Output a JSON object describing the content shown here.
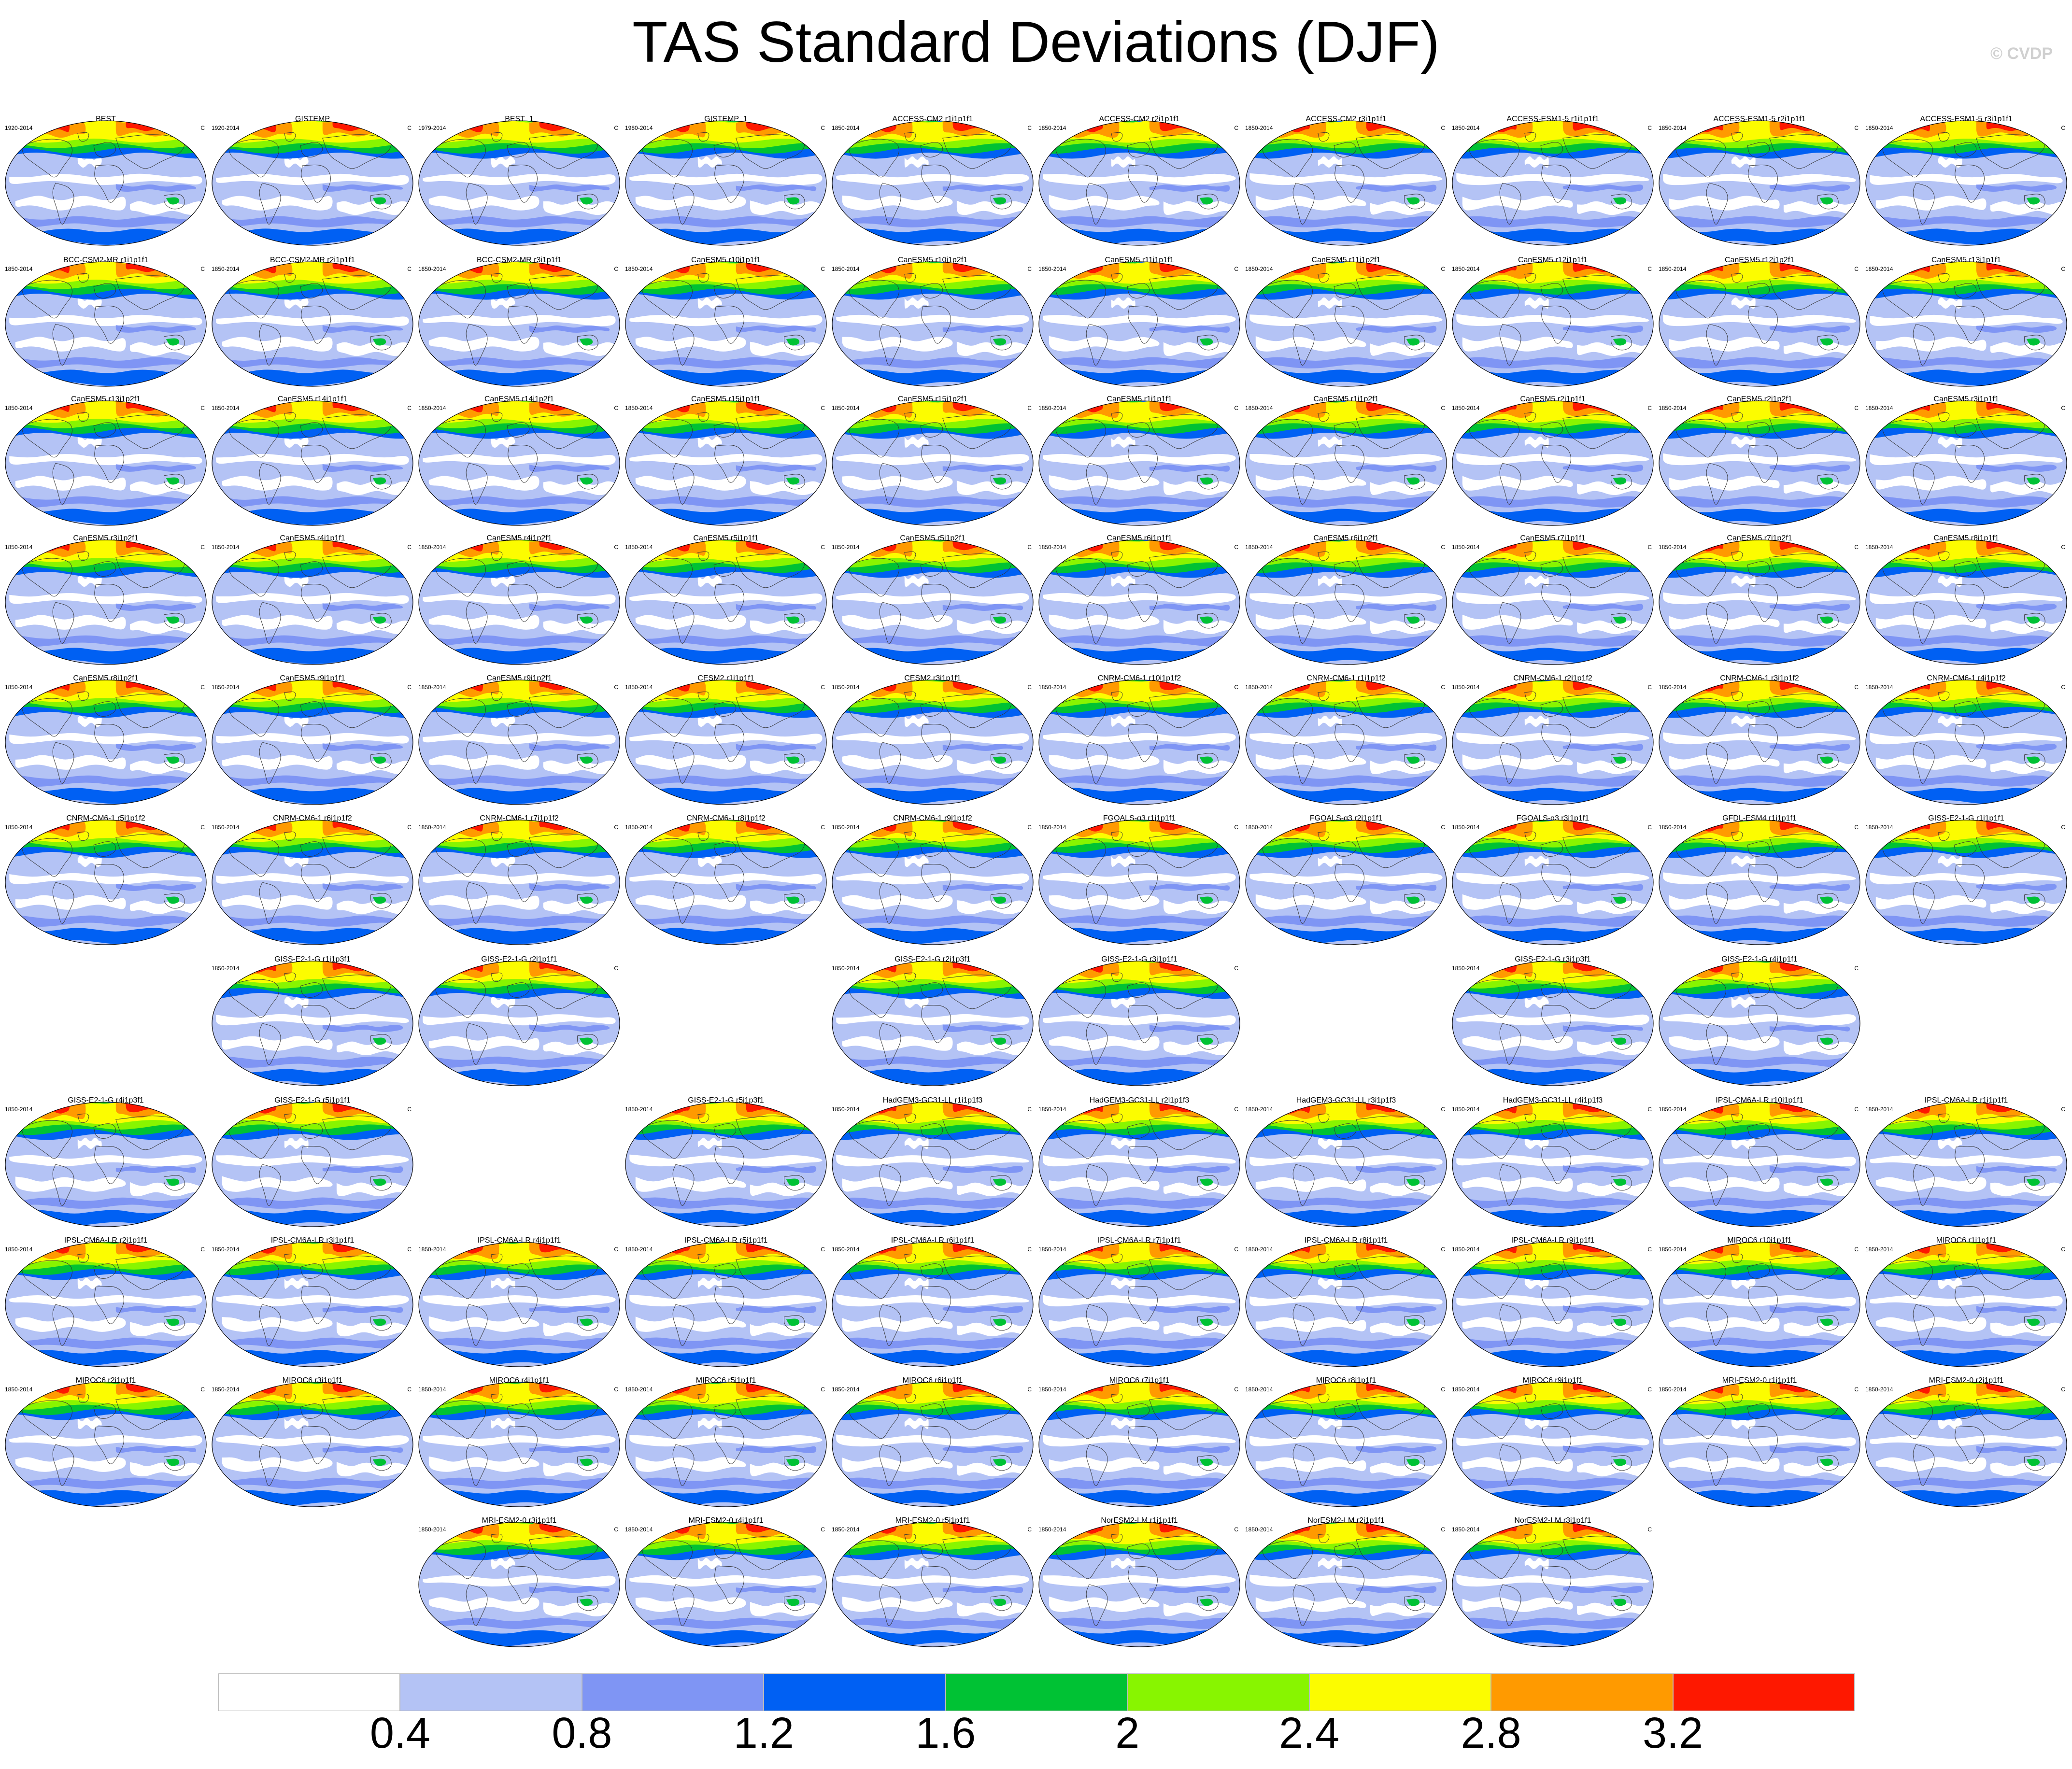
{
  "title": "TAS Standard Deviations (DJF)",
  "credit": "© CVDP",
  "colors": {
    "levels": [
      "#ffffff",
      "#b4c3f5",
      "#7f95f4",
      "#0060f3",
      "#00c234",
      "#88f500",
      "#fcfc00",
      "#ff9a00",
      "#fe1800"
    ],
    "continent_outline": "#333333",
    "map_border": "#000000"
  },
  "chart_data": {
    "type": "heatmap",
    "title": "TAS Standard Deviations (DJF)",
    "colorbar": {
      "tick_labels": [
        "0.4",
        "0.8",
        "1.2",
        "1.6",
        "2",
        "2.4",
        "2.8",
        "3.2"
      ],
      "bounds": [
        0.4,
        0.8,
        1.2,
        1.6,
        2.0,
        2.4,
        2.8,
        3.2
      ],
      "n_colors": 9
    },
    "panels": [
      [
        {
          "title": "BEST",
          "years": "1920-2014",
          "unit": "C"
        },
        {
          "title": "GISTEMP",
          "years": "1920-2014",
          "unit": "C"
        },
        {
          "title": "BEST_1",
          "years": "1979-2014",
          "unit": "C"
        },
        {
          "title": "GISTEMP_1",
          "years": "1980-2014",
          "unit": "C"
        },
        {
          "title": "ACCESS-CM2 r1i1p1f1",
          "years": "1850-2014",
          "unit": "C"
        },
        {
          "title": "ACCESS-CM2 r2i1p1f1",
          "years": "1850-2014",
          "unit": "C"
        },
        {
          "title": "ACCESS-CM2 r3i1p1f1",
          "years": "1850-2014",
          "unit": "C"
        },
        {
          "title": "ACCESS-ESM1-5 r1i1p1f1",
          "years": "1850-2014",
          "unit": "C"
        },
        {
          "title": "ACCESS-ESM1-5 r2i1p1f1",
          "years": "1850-2014",
          "unit": "C"
        },
        {
          "title": "ACCESS-ESM1-5 r3i1p1f1",
          "years": "1850-2014",
          "unit": "C"
        }
      ],
      [
        {
          "title": "BCC-CSM2-MR r1i1p1f1",
          "years": "1850-2014",
          "unit": "C"
        },
        {
          "title": "BCC-CSM2-MR r2i1p1f1",
          "years": "1850-2014",
          "unit": "C"
        },
        {
          "title": "BCC-CSM2-MR r3i1p1f1",
          "years": "1850-2014",
          "unit": "C"
        },
        {
          "title": "CanESM5 r10i1p1f1",
          "years": "1850-2014",
          "unit": "C"
        },
        {
          "title": "CanESM5 r10i1p2f1",
          "years": "1850-2014",
          "unit": "C"
        },
        {
          "title": "CanESM5 r11i1p1f1",
          "years": "1850-2014",
          "unit": "C"
        },
        {
          "title": "CanESM5 r11i1p2f1",
          "years": "1850-2014",
          "unit": "C"
        },
        {
          "title": "CanESM5 r12i1p1f1",
          "years": "1850-2014",
          "unit": "C"
        },
        {
          "title": "CanESM5 r12i1p2f1",
          "years": "1850-2014",
          "unit": "C"
        },
        {
          "title": "CanESM5 r13i1p1f1",
          "years": "1850-2014",
          "unit": "C"
        }
      ],
      [
        {
          "title": "CanESM5 r13i1p2f1",
          "years": "1850-2014",
          "unit": "C"
        },
        {
          "title": "CanESM5 r14i1p1f1",
          "years": "1850-2014",
          "unit": "C"
        },
        {
          "title": "CanESM5 r14i1p2f1",
          "years": "1850-2014",
          "unit": "C"
        },
        {
          "title": "CanESM5 r15i1p1f1",
          "years": "1850-2014",
          "unit": "C"
        },
        {
          "title": "CanESM5 r15i1p2f1",
          "years": "1850-2014",
          "unit": "C"
        },
        {
          "title": "CanESM5 r1i1p1f1",
          "years": "1850-2014",
          "unit": "C"
        },
        {
          "title": "CanESM5 r1i1p2f1",
          "years": "1850-2014",
          "unit": "C"
        },
        {
          "title": "CanESM5 r2i1p1f1",
          "years": "1850-2014",
          "unit": "C"
        },
        {
          "title": "CanESM5 r2i1p2f1",
          "years": "1850-2014",
          "unit": "C"
        },
        {
          "title": "CanESM5 r3i1p1f1",
          "years": "1850-2014",
          "unit": "C"
        }
      ],
      [
        {
          "title": "CanESM5 r3i1p2f1",
          "years": "1850-2014",
          "unit": "C"
        },
        {
          "title": "CanESM5 r4i1p1f1",
          "years": "1850-2014",
          "unit": "C"
        },
        {
          "title": "CanESM5 r4i1p2f1",
          "years": "1850-2014",
          "unit": "C"
        },
        {
          "title": "CanESM5 r5i1p1f1",
          "years": "1850-2014",
          "unit": "C"
        },
        {
          "title": "CanESM5 r5i1p2f1",
          "years": "1850-2014",
          "unit": "C"
        },
        {
          "title": "CanESM5 r6i1p1f1",
          "years": "1850-2014",
          "unit": "C"
        },
        {
          "title": "CanESM5 r6i1p2f1",
          "years": "1850-2014",
          "unit": "C"
        },
        {
          "title": "CanESM5 r7i1p1f1",
          "years": "1850-2014",
          "unit": "C"
        },
        {
          "title": "CanESM5 r7i1p2f1",
          "years": "1850-2014",
          "unit": "C"
        },
        {
          "title": "CanESM5 r8i1p1f1",
          "years": "1850-2014",
          "unit": "C"
        }
      ],
      [
        {
          "title": "CanESM5 r8i1p2f1",
          "years": "1850-2014",
          "unit": "C"
        },
        {
          "title": "CanESM5 r9i1p1f1",
          "years": "1850-2014",
          "unit": "C"
        },
        {
          "title": "CanESM5 r9i1p2f1",
          "years": "1850-2014",
          "unit": "C"
        },
        {
          "title": "CESM2 r1i1p1f1",
          "years": "1850-2014",
          "unit": "C"
        },
        {
          "title": "CESM2 r3i1p1f1",
          "years": "1850-2014",
          "unit": "C"
        },
        {
          "title": "CNRM-CM6-1 r10i1p1f2",
          "years": "1850-2014",
          "unit": "C"
        },
        {
          "title": "CNRM-CM6-1 r1i1p1f2",
          "years": "1850-2014",
          "unit": "C"
        },
        {
          "title": "CNRM-CM6-1 r2i1p1f2",
          "years": "1850-2014",
          "unit": "C"
        },
        {
          "title": "CNRM-CM6-1 r3i1p1f2",
          "years": "1850-2014",
          "unit": "C"
        },
        {
          "title": "CNRM-CM6-1 r4i1p1f2",
          "years": "1850-2014",
          "unit": "C"
        }
      ],
      [
        {
          "title": "CNRM-CM6-1 r5i1p1f2",
          "years": "1850-2014",
          "unit": "C"
        },
        {
          "title": "CNRM-CM6-1 r6i1p1f2",
          "years": "1850-2014",
          "unit": "C"
        },
        {
          "title": "CNRM-CM6-1 r7i1p1f2",
          "years": "1850-2014",
          "unit": "C"
        },
        {
          "title": "CNRM-CM6-1 r8i1p1f2",
          "years": "1850-2014",
          "unit": "C"
        },
        {
          "title": "CNRM-CM6-1 r9i1p1f2",
          "years": "1850-2014",
          "unit": "C"
        },
        {
          "title": "FGOALS-g3 r1i1p1f1",
          "years": "1850-2014",
          "unit": "C"
        },
        {
          "title": "FGOALS-g3 r2i1p1f1",
          "years": "1850-2014",
          "unit": "C"
        },
        {
          "title": "FGOALS-g3 r3i1p1f1",
          "years": "1850-2014",
          "unit": "C"
        },
        {
          "title": "GFDL-ESM4 r1i1p1f1",
          "years": "1850-2014",
          "unit": "C"
        },
        {
          "title": "GISS-E2-1-G r1i1p1f1",
          "years": "1850-2014",
          "unit": "C"
        }
      ],
      [
        null,
        {
          "title": "GISS-E2-1-G r1i1p3f1",
          "years": "1850-2014",
          "unit": ""
        },
        {
          "title": "GISS-E2-1-G r2i1p1f1",
          "years": "",
          "unit": "C"
        },
        null,
        {
          "title": "GISS-E2-1-G r2i1p3f1",
          "years": "1850-2014",
          "unit": ""
        },
        {
          "title": "GISS-E2-1-G r3i1p1f1",
          "years": "",
          "unit": "C"
        },
        null,
        {
          "title": "GISS-E2-1-G r3i1p3f1",
          "years": "1850-2014",
          "unit": ""
        },
        {
          "title": "GISS-E2-1-G r4i1p1f1",
          "years": "",
          "unit": "C"
        },
        null
      ],
      [
        {
          "title": "GISS-E2-1-G r4i1p3f1",
          "years": "1850-2014",
          "unit": ""
        },
        {
          "title": "GISS-E2-1-G r5i1p1f1",
          "years": "",
          "unit": "C"
        },
        null,
        {
          "title": "GISS-E2-1-G r5i1p3f1",
          "years": "1850-2014",
          "unit": ""
        },
        {
          "title": "HadGEM3-GC31-LL r1i1p1f3",
          "years": "1850-2014",
          "unit": "C"
        },
        {
          "title": "HadGEM3-GC31-LL r2i1p1f3",
          "years": "1850-2014",
          "unit": "C"
        },
        {
          "title": "HadGEM3-GC31-LL r3i1p1f3",
          "years": "1850-2014",
          "unit": "C"
        },
        {
          "title": "HadGEM3-GC31-LL r4i1p1f3",
          "years": "1850-2014",
          "unit": "C"
        },
        {
          "title": "IPSL-CM6A-LR r10i1p1f1",
          "years": "1850-2014",
          "unit": "C"
        },
        {
          "title": "IPSL-CM6A-LR r1i1p1f1",
          "years": "1850-2014",
          "unit": "C"
        }
      ],
      [
        {
          "title": "IPSL-CM6A-LR r2i1p1f1",
          "years": "1850-2014",
          "unit": "C"
        },
        {
          "title": "IPSL-CM6A-LR r3i1p1f1",
          "years": "1850-2014",
          "unit": "C"
        },
        {
          "title": "IPSL-CM6A-LR r4i1p1f1",
          "years": "1850-2014",
          "unit": "C"
        },
        {
          "title": "IPSL-CM6A-LR r5i1p1f1",
          "years": "1850-2014",
          "unit": "C"
        },
        {
          "title": "IPSL-CM6A-LR r6i1p1f1",
          "years": "1850-2014",
          "unit": "C"
        },
        {
          "title": "IPSL-CM6A-LR r7i1p1f1",
          "years": "1850-2014",
          "unit": "C"
        },
        {
          "title": "IPSL-CM6A-LR r8i1p1f1",
          "years": "1850-2014",
          "unit": "C"
        },
        {
          "title": "IPSL-CM6A-LR r9i1p1f1",
          "years": "1850-2014",
          "unit": "C"
        },
        {
          "title": "MIROC6 r10i1p1f1",
          "years": "1850-2014",
          "unit": "C"
        },
        {
          "title": "MIROC6 r1i1p1f1",
          "years": "1850-2014",
          "unit": "C"
        }
      ],
      [
        {
          "title": "MIROC6 r2i1p1f1",
          "years": "1850-2014",
          "unit": "C"
        },
        {
          "title": "MIROC6 r3i1p1f1",
          "years": "1850-2014",
          "unit": "C"
        },
        {
          "title": "MIROC6 r4i1p1f1",
          "years": "1850-2014",
          "unit": "C"
        },
        {
          "title": "MIROC6 r5i1p1f1",
          "years": "1850-2014",
          "unit": "C"
        },
        {
          "title": "MIROC6 r6i1p1f1",
          "years": "1850-2014",
          "unit": "C"
        },
        {
          "title": "MIROC6 r7i1p1f1",
          "years": "1850-2014",
          "unit": "C"
        },
        {
          "title": "MIROC6 r8i1p1f1",
          "years": "1850-2014",
          "unit": "C"
        },
        {
          "title": "MIROC6 r9i1p1f1",
          "years": "1850-2014",
          "unit": "C"
        },
        {
          "title": "MRI-ESM2-0 r1i1p1f1",
          "years": "1850-2014",
          "unit": "C"
        },
        {
          "title": "MRI-ESM2-0 r2i1p1f1",
          "years": "1850-2014",
          "unit": "C"
        }
      ],
      [
        null,
        null,
        {
          "title": "MRI-ESM2-0 r3i1p1f1",
          "years": "1850-2014",
          "unit": "C"
        },
        {
          "title": "MRI-ESM2-0 r4i1p1f1",
          "years": "1850-2014",
          "unit": "C"
        },
        {
          "title": "MRI-ESM2-0 r5i1p1f1",
          "years": "1850-2014",
          "unit": "C"
        },
        {
          "title": "NorESM2-LM r1i1p1f1",
          "years": "1850-2014",
          "unit": "C"
        },
        {
          "title": "NorESM2-LM r2i1p1f1",
          "years": "1850-2014",
          "unit": "C"
        },
        {
          "title": "NorESM2-LM r3i1p1f1",
          "years": "1850-2014",
          "unit": "C"
        },
        null,
        null
      ]
    ]
  }
}
